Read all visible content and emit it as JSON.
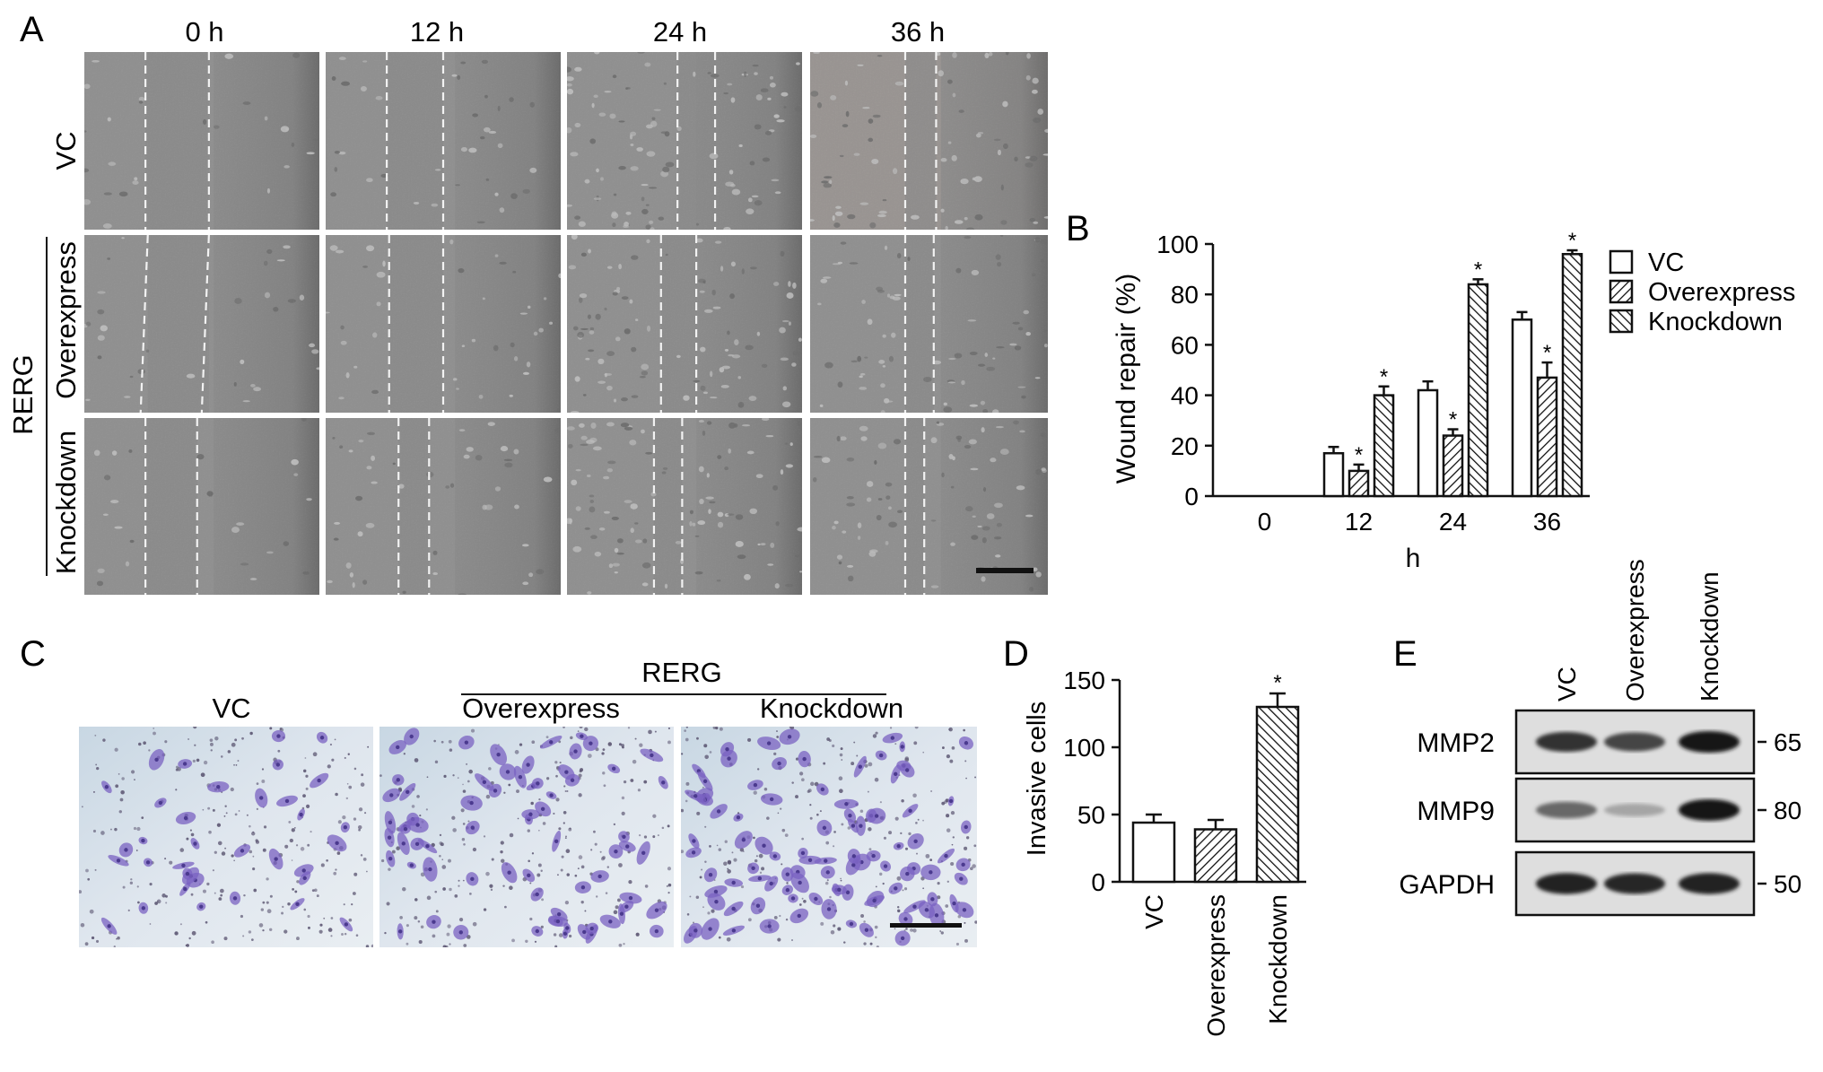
{
  "panel_a": {
    "letter": "A",
    "time_labels": [
      "0 h",
      "12 h",
      "24 h",
      "36 h"
    ],
    "row_labels": [
      "VC",
      "Overexpress",
      "Knockdown"
    ],
    "group_label": "RERG"
  },
  "panel_b": {
    "letter": "B",
    "ylabel": "Wound repair (%)",
    "xlabel": "h",
    "legend": [
      "VC",
      "Overexpress",
      "Knockdown"
    ],
    "significance_mark": "*"
  },
  "panel_c": {
    "letter": "C",
    "group_label": "RERG",
    "image_labels": [
      "VC",
      "Overexpress",
      "Knockdown"
    ]
  },
  "panel_d": {
    "letter": "D",
    "ylabel": "Invasive cells",
    "significance_mark": "*"
  },
  "panel_e": {
    "letter": "E",
    "lanes": [
      "VC",
      "Overexpress",
      "Knockdown"
    ],
    "proteins": [
      "MMP2",
      "MMP9",
      "GAPDH"
    ],
    "kda_markers": [
      "65",
      "80",
      "50"
    ],
    "band_intensity": [
      [
        0.85,
        0.75,
        1.0
      ],
      [
        0.55,
        0.2,
        1.0
      ],
      [
        0.95,
        0.92,
        0.95
      ]
    ]
  },
  "chart_data": [
    {
      "type": "bar",
      "categories": [
        "0",
        "12",
        "24",
        "36"
      ],
      "series": [
        {
          "name": "VC",
          "values": [
            0,
            17,
            42,
            70
          ],
          "errors": [
            0,
            2.5,
            3.5,
            3
          ],
          "significant": [
            false,
            false,
            false,
            false
          ]
        },
        {
          "name": "Overexpress",
          "values": [
            0,
            10,
            24,
            47
          ],
          "errors": [
            0,
            2.5,
            2.5,
            6
          ],
          "significant": [
            false,
            true,
            true,
            true
          ]
        },
        {
          "name": "Knockdown",
          "values": [
            0,
            40,
            84,
            96
          ],
          "errors": [
            0,
            3.5,
            2,
            1.5
          ],
          "significant": [
            false,
            true,
            true,
            true
          ]
        }
      ],
      "xlabel": "h",
      "ylabel": "Wound repair (%)",
      "ylim": [
        0,
        100
      ],
      "yticks": [
        0,
        20,
        40,
        60,
        80,
        100
      ],
      "legend_position": "right"
    },
    {
      "type": "bar",
      "categories": [
        "VC",
        "Overexpress",
        "Knockdown"
      ],
      "values": [
        44,
        39,
        130
      ],
      "errors": [
        6,
        7,
        10
      ],
      "significant": [
        false,
        false,
        true
      ],
      "ylabel": "Invasive cells",
      "ylim": [
        0,
        150
      ],
      "yticks": [
        0,
        50,
        100,
        150
      ]
    }
  ]
}
